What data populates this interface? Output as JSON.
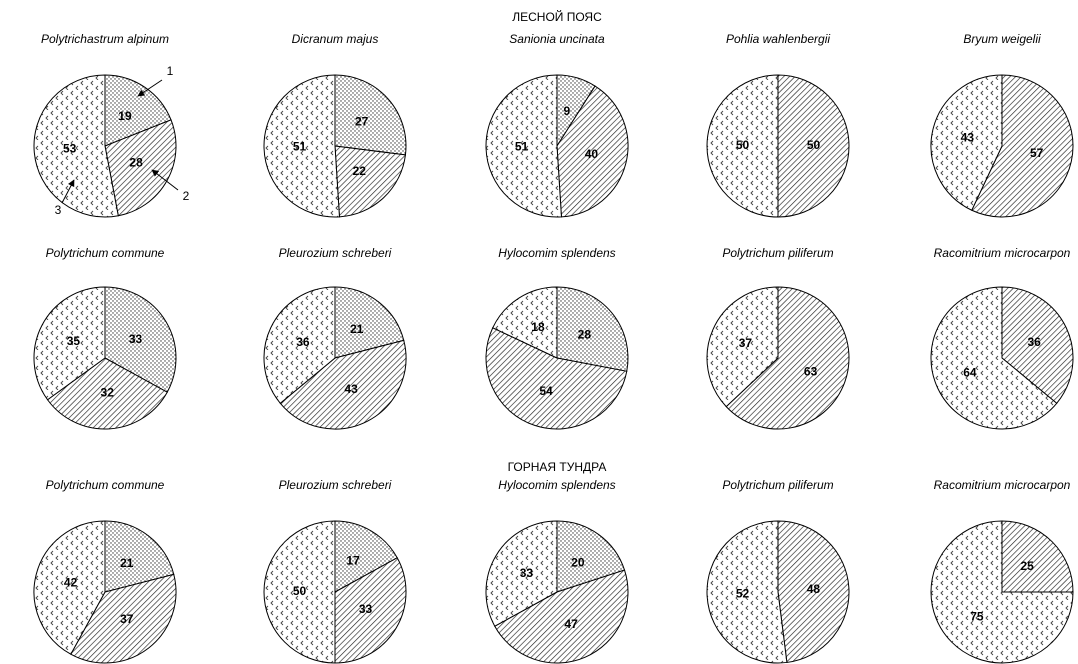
{
  "sections": [
    "ЛЕСНОЙ ПОЯС",
    "ГОРНАЯ ТУНДРА"
  ],
  "patterns": [
    "dots",
    "hatch",
    "chevrons"
  ],
  "chart_data": [
    {
      "type": "pie",
      "title": "Polytrichastrum alpinum",
      "values": [
        19,
        28,
        53
      ],
      "categories": [
        "1",
        "2",
        "3"
      ]
    },
    {
      "type": "pie",
      "title": "Dicranum majus",
      "values": [
        27,
        22,
        51
      ]
    },
    {
      "type": "pie",
      "title": "Sanionia uncinata",
      "values": [
        9,
        40,
        51
      ]
    },
    {
      "type": "pie",
      "title": "Pohlia wahlenbergii",
      "values": [
        null,
        50,
        50
      ]
    },
    {
      "type": "pie",
      "title": "Bryum weigelii",
      "values": [
        null,
        57,
        43
      ]
    },
    {
      "type": "pie",
      "title": "Polytrichum commune",
      "values": [
        33,
        32,
        35
      ]
    },
    {
      "type": "pie",
      "title": "Pleurozium schreberi",
      "values": [
        21,
        43,
        36
      ]
    },
    {
      "type": "pie",
      "title": "Hylocomim splendens",
      "values": [
        28,
        54,
        18
      ]
    },
    {
      "type": "pie",
      "title": "Polytrichum piliferum",
      "values": [
        null,
        63,
        37
      ]
    },
    {
      "type": "pie",
      "title": "Racomitrium microcarpon",
      "values": [
        null,
        36,
        64
      ]
    },
    {
      "type": "pie",
      "title": "Polytrichum commune",
      "values": [
        21,
        37,
        42
      ]
    },
    {
      "type": "pie",
      "title": "Pleurozium schreberi",
      "values": [
        17,
        33,
        50
      ]
    },
    {
      "type": "pie",
      "title": "Hylocomim splendens",
      "values": [
        20,
        47,
        33
      ]
    },
    {
      "type": "pie",
      "title": "Polytrichum piliferum",
      "values": [
        null,
        48,
        52
      ]
    },
    {
      "type": "pie",
      "title": "Racomitrium microcarpon",
      "values": [
        null,
        25,
        75
      ]
    }
  ]
}
